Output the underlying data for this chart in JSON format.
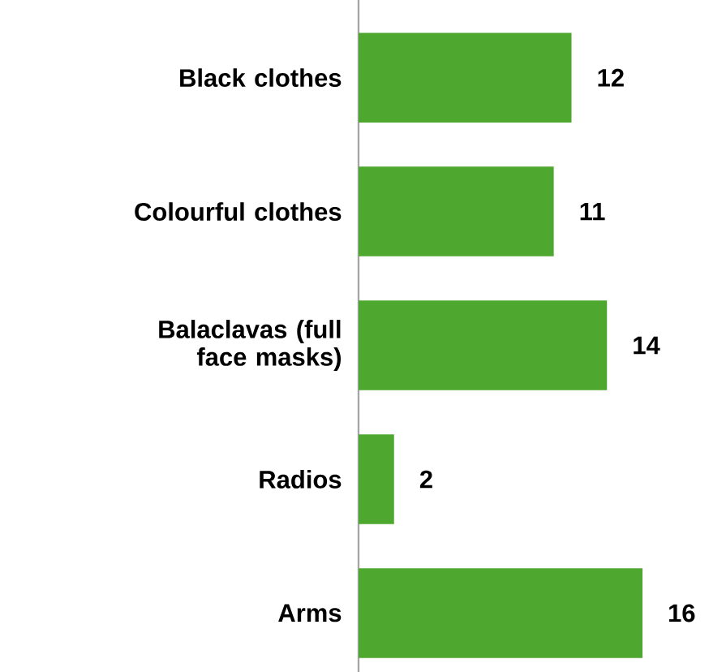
{
  "chart_data": {
    "type": "bar",
    "orientation": "horizontal",
    "categories": [
      "Black clothes",
      "Colourful clothes",
      "Balaclavas (full face masks)",
      "Radios",
      "Arms"
    ],
    "values": [
      12,
      11,
      14,
      2,
      16
    ],
    "color": "#4ea72e",
    "tick_labels": "y",
    "data_labels": true
  }
}
